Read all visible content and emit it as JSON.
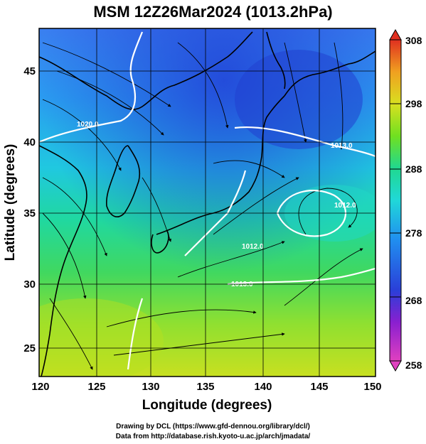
{
  "title": "MSM 12Z26Mar2024 (1013.2hPa)",
  "axes": {
    "xlabel": "Longitude (degrees)",
    "ylabel": "Latitude  (degrees)",
    "xlim": [
      120,
      150
    ],
    "ylim": [
      22.5,
      48
    ],
    "xticks": [
      "120",
      "125",
      "130",
      "135",
      "140",
      "145",
      "150"
    ],
    "yticks": [
      "25",
      "30",
      "35",
      "40",
      "45"
    ],
    "grid": true
  },
  "colorbar": {
    "ticks": [
      "258",
      "268",
      "278",
      "288",
      "298",
      "308"
    ],
    "range": [
      258,
      308
    ],
    "colors": [
      "#e040c0",
      "#8a1fd0",
      "#2a3fd8",
      "#2090f0",
      "#20d8d8",
      "#20d890",
      "#70e020",
      "#d8e020",
      "#f0a020",
      "#e03020"
    ]
  },
  "contour_labels": [
    "1020.0",
    "1013.0",
    "1013.0",
    "1012.0",
    "1012.0"
  ],
  "credits": {
    "line1": "Drawing by DCL (https://www.gfd-dennou.org/library/dcl/)",
    "line2": "Data from http://database.rish.kyoto-u.ac.jp/arch/jmadata/"
  },
  "colors": {
    "land_outline": "#000000",
    "contour": "#ffffff",
    "streamline": "#000000"
  }
}
